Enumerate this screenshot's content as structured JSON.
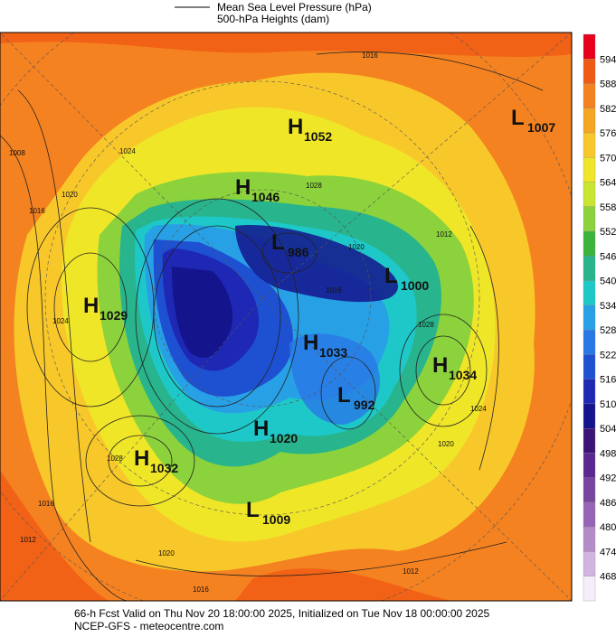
{
  "header": {
    "legend": [
      "Mean Sea Level Pressure (hPa)",
      "500-hPa Heights (dam)"
    ]
  },
  "colorbar": {
    "labels": [
      594,
      588,
      582,
      576,
      570,
      564,
      558,
      552,
      546,
      540,
      534,
      528,
      522,
      516,
      510,
      504,
      498,
      492,
      486,
      480,
      474,
      468
    ],
    "colors": [
      "#e8001c",
      "#f05a14",
      "#f58220",
      "#f5a623",
      "#f8c82a",
      "#f0e628",
      "#c8e632",
      "#8cd23c",
      "#3cb43c",
      "#28b48c",
      "#1ec8c8",
      "#28a0e6",
      "#2878e6",
      "#1e50d2",
      "#1e28b4",
      "#14148c",
      "#3c1478",
      "#5a2890",
      "#7846a0",
      "#9664b4",
      "#b48cc8",
      "#d2b4e0",
      "#f5eefa"
    ]
  },
  "centers": [
    {
      "type": "H",
      "value": "1052"
    },
    {
      "type": "H",
      "value": "1046"
    },
    {
      "type": "L",
      "value": "986"
    },
    {
      "type": "L",
      "value": "1000"
    },
    {
      "type": "H",
      "value": "1029"
    },
    {
      "type": "H",
      "value": "1033"
    },
    {
      "type": "H",
      "value": "1034"
    },
    {
      "type": "L",
      "value": "992"
    },
    {
      "type": "H",
      "value": "1020"
    },
    {
      "type": "H",
      "value": "1032"
    },
    {
      "type": "L",
      "value": "1009"
    },
    {
      "type": "L",
      "value": "1007"
    }
  ],
  "isobar_labels": [
    "1016",
    "1008",
    "1016",
    "1020",
    "1024",
    "1028",
    "1012",
    "1016",
    "1020",
    "1028",
    "1024",
    "1024",
    "1028",
    "1020",
    "1016",
    "1012",
    "1020",
    "1016",
    "1012"
  ],
  "footer": [
    "66-h Fcst Valid on Thu Nov 20 18:00:00 2025, Initialized on Tue Nov 18 00:00:00 2025",
    "NCEP-GFS - meteocentre.com"
  ]
}
